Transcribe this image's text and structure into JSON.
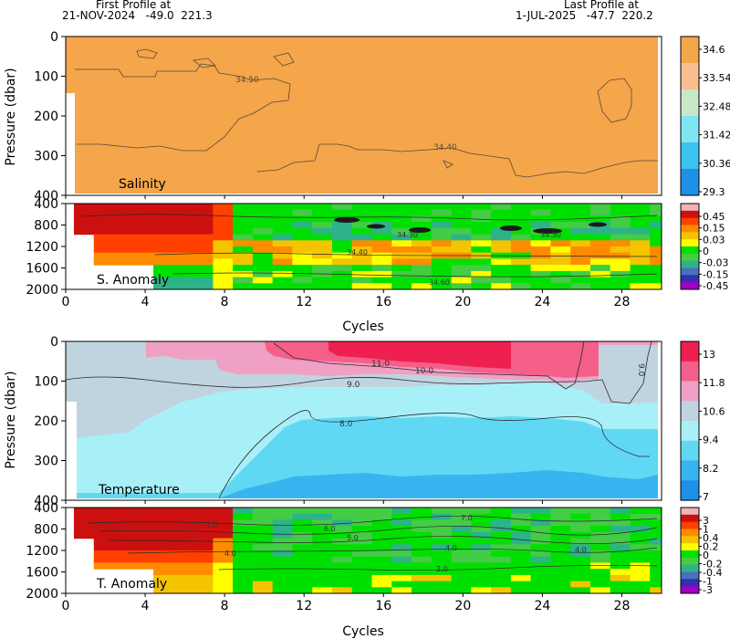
{
  "header": {
    "first_label": "First Profile at",
    "first_value": "21-NOV-2024   -49.0  221.3",
    "last_label": "Last Profile at",
    "last_value": "1-JUL-2025   -47.7  220.2"
  },
  "chart_data": [
    {
      "type": "heatmap",
      "name": "Salinity",
      "title": "Salinity",
      "ylabel": "Pressure (dbar)",
      "ylim": [
        400,
        0
      ],
      "xlim": [
        0,
        30
      ],
      "yticks": [
        "0",
        "100",
        "200",
        "300",
        "400"
      ],
      "colorbar": {
        "ticks": [
          "34.6",
          "33.54",
          "32.48",
          "31.42",
          "30.36",
          "29.3"
        ],
        "colors": [
          "#f5a54a",
          "#f8c090",
          "#c8e8c8",
          "#7fe6f2",
          "#3cc4f0",
          "#1e90e8"
        ]
      },
      "contours": [
        {
          "label": "34.50"
        },
        {
          "label": "34.40"
        }
      ],
      "dominant_value": 34.5
    },
    {
      "type": "heatmap",
      "name": "S. Anomaly",
      "title": "S. Anomaly",
      "ylim": [
        2000,
        400
      ],
      "xlim": [
        0,
        30
      ],
      "yticks": [
        "400",
        "800",
        "1200",
        "1600",
        "2000"
      ],
      "colorbar": {
        "ticks": [
          "0.45",
          "0.15",
          "0.03",
          "0",
          "-0.03",
          "-0.15",
          "-0.45"
        ],
        "colors": [
          "#f0b4b4",
          "#cc1010",
          "#ff4000",
          "#ff8c00",
          "#f5c400",
          "#ffff00",
          "#00e000",
          "#44cc44",
          "#2db38a",
          "#4a6fbf",
          "#3030b0",
          "#a000c8"
        ]
      },
      "contours": [
        {
          "label": "34.30"
        },
        {
          "label": "34.30"
        },
        {
          "label": "34.40"
        },
        {
          "label": "34.60"
        }
      ]
    },
    {
      "type": "heatmap",
      "name": "Temperature",
      "title": "Temperature",
      "xlabel": "Cycles",
      "ylabel": "Pressure (dbar)",
      "ylim": [
        400,
        0
      ],
      "xlim": [
        0,
        30
      ],
      "xticks": [
        "0",
        "4",
        "8",
        "12",
        "16",
        "20",
        "24",
        "28"
      ],
      "yticks": [
        "0",
        "100",
        "200",
        "300",
        "400"
      ],
      "colorbar": {
        "ticks": [
          "13",
          "11.8",
          "10.6",
          "9.4",
          "8.2",
          "7"
        ],
        "colors": [
          "#ee2050",
          "#f4608a",
          "#f0a0c4",
          "#c0d4e0",
          "#a8f0f8",
          "#60d8f4",
          "#38b4f0",
          "#1e90e8"
        ]
      },
      "contours": [
        {
          "label": "11.0"
        },
        {
          "label": "10.0"
        },
        {
          "label": "9.0"
        },
        {
          "label": "9.0"
        },
        {
          "label": "8.0"
        }
      ]
    },
    {
      "type": "heatmap",
      "name": "T. Anomaly",
      "title": "T. Anomaly",
      "xlabel": "Cycles",
      "ylim": [
        2000,
        400
      ],
      "xlim": [
        0,
        30
      ],
      "xticks": [
        "0",
        "4",
        "8",
        "12",
        "16",
        "20",
        "24",
        "28"
      ],
      "yticks": [
        "400",
        "800",
        "1200",
        "1600",
        "2000"
      ],
      "colorbar": {
        "ticks": [
          "3",
          "1",
          "0.4",
          "0.2",
          "0",
          "-0.2",
          "-0.4",
          "-1",
          "-3"
        ],
        "colors": [
          "#f0b4b4",
          "#cc1010",
          "#ff4000",
          "#ff8c00",
          "#f5c400",
          "#ffff00",
          "#00e000",
          "#44cc44",
          "#2db38a",
          "#4a6fbf",
          "#3030b0",
          "#a000c8"
        ]
      },
      "contours": [
        {
          "label": "7.0"
        },
        {
          "label": "7.0"
        },
        {
          "label": "6.0"
        },
        {
          "label": "5.0"
        },
        {
          "label": "4.0"
        },
        {
          "label": "4.0"
        },
        {
          "label": "4.0"
        },
        {
          "label": "3.0"
        }
      ]
    }
  ],
  "xlabel": "Cycles",
  "xticks": [
    "0",
    "4",
    "8",
    "12",
    "16",
    "20",
    "24",
    "28"
  ]
}
